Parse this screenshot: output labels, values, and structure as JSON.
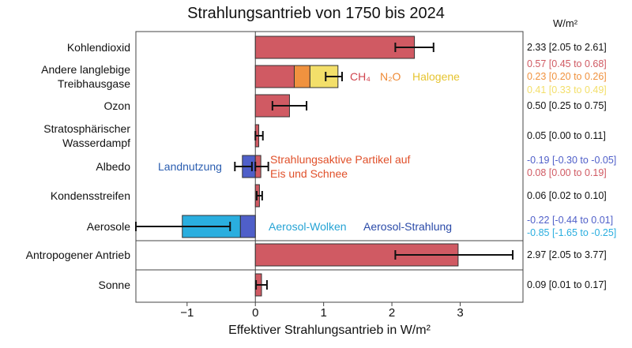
{
  "chart_data": {
    "type": "bar",
    "orientation": "horizontal",
    "title": "Strahlungsantrieb von 1750 bis 2024",
    "xlabel": "Effektiver Strahlungsantrieb in W/m²",
    "unit_header": "W/m²",
    "xlim": [
      -1.75,
      3.92
    ],
    "xticks": [
      {
        "value": -1,
        "label": "−1"
      },
      0,
      1,
      2,
      3
    ],
    "categories": [
      "Kohlendioxid",
      "Andere langlebige Treibhausgase",
      "Ozon",
      "Stratosphärischer Wasserdampf",
      "Albedo",
      "Kondensstreifen",
      "Aerosole",
      "Antropogener Antrieb",
      "Sonne"
    ],
    "rows": [
      {
        "segments": [
          {
            "value": 2.33,
            "low": 2.05,
            "high": 2.61,
            "color": "#d05a63",
            "value_label": "2.33 [2.05 to 2.61]"
          }
        ]
      },
      {
        "segments": [
          {
            "name": "CH₄",
            "value": 0.57,
            "color": "#d05a63",
            "value_label": "0.57 [0.45 to 0.68]"
          },
          {
            "name": "N₂O",
            "value": 0.23,
            "color": "#f0923f",
            "value_label": "0.23 [0.20 to 0.26]"
          },
          {
            "name": "Halogene",
            "value": 0.41,
            "color": "#f3df6a",
            "value_label": "0.41 [0.33 to 0.49]"
          }
        ],
        "total_error": [
          1.03,
          1.27
        ]
      },
      {
        "segments": [
          {
            "value": 0.5,
            "low": 0.25,
            "high": 0.75,
            "color": "#d05a63",
            "value_label": "0.50 [0.25 to 0.75]"
          }
        ]
      },
      {
        "segments": [
          {
            "value": 0.05,
            "low": 0.0,
            "high": 0.11,
            "color": "#d05a63",
            "value_label": "0.05 [0.00 to 0.11]"
          }
        ]
      },
      {
        "segments": [
          {
            "name": "Landnutzung",
            "value": -0.19,
            "low": -0.3,
            "high": -0.05,
            "color": "#4f5fc9",
            "value_label": "-0.19 [-0.30 to -0.05]"
          },
          {
            "name": "Strahlungsaktive Partikel auf Eis und Schnee",
            "value": 0.08,
            "low": 0.0,
            "high": 0.19,
            "color": "#d05a63",
            "value_label": "0.08 [0.00 to 0.19]"
          }
        ]
      },
      {
        "segments": [
          {
            "value": 0.06,
            "low": 0.02,
            "high": 0.1,
            "color": "#d05a63",
            "value_label": "0.06 [0.02 to 0.10]"
          }
        ]
      },
      {
        "segments": [
          {
            "name": "Aerosol-Strahlung",
            "value": -0.22,
            "color": "#4f5fc9",
            "value_label": "-0.22 [-0.44 to 0.01]"
          },
          {
            "name": "Aerosol-Wolken",
            "value": -0.85,
            "color": "#2aaedf",
            "value_label": "-0.85 [-1.65 to -0.25]"
          }
        ],
        "total_error": [
          -1.75,
          -0.37
        ]
      },
      {
        "segments": [
          {
            "value": 2.97,
            "low": 2.05,
            "high": 3.77,
            "color": "#d05a63",
            "value_label": "2.97 [2.05 to 3.77]"
          }
        ]
      },
      {
        "segments": [
          {
            "value": 0.09,
            "low": 0.01,
            "high": 0.17,
            "color": "#d05a63",
            "value_label": "0.09 [0.01 to 0.17]"
          }
        ]
      }
    ]
  }
}
